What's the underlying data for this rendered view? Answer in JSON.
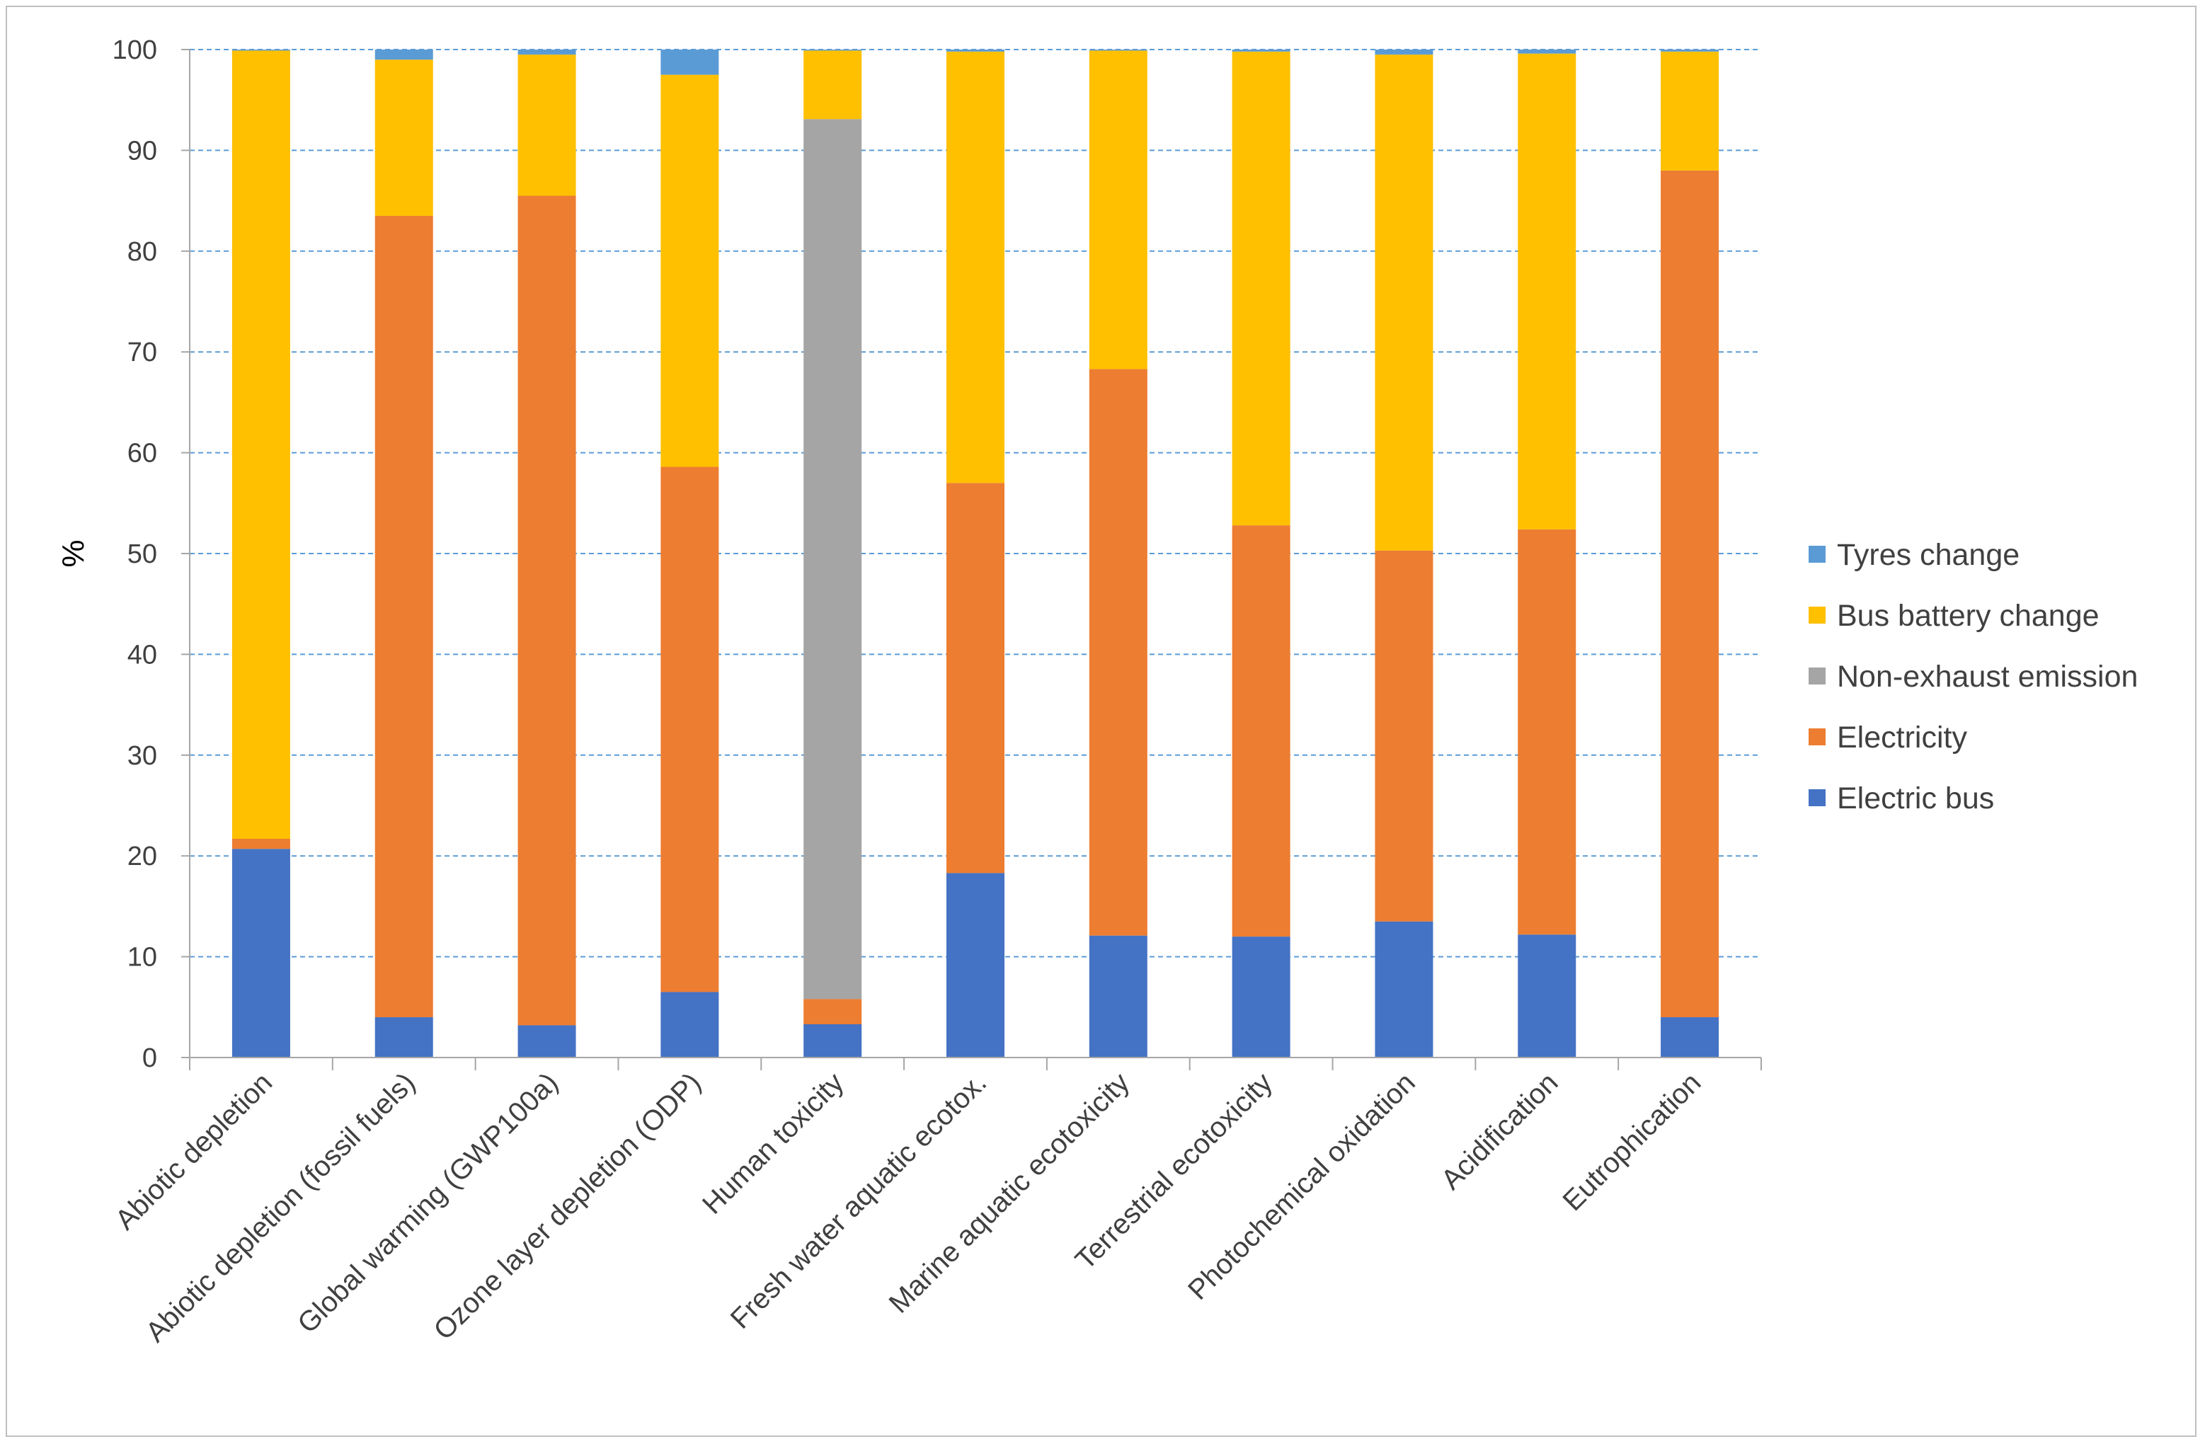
{
  "chart_data": {
    "type": "bar",
    "stacked": true,
    "title": "",
    "xlabel": "",
    "ylabel": "%",
    "ylim": [
      0,
      100
    ],
    "yticks": [
      0,
      10,
      20,
      30,
      40,
      50,
      60,
      70,
      80,
      90,
      100
    ],
    "grid": true,
    "legend_position": "right",
    "categories": [
      "Abiotic depletion",
      "Abiotic depletion (fossil fuels)",
      "Global warming (GWP100a)",
      "Ozone layer depletion (ODP)",
      "Human toxicity",
      "Fresh water aquatic ecotox.",
      "Marine aquatic ecotoxicity",
      "Terrestrial ecotoxicity",
      "Photochemical oxidation",
      "Acidification",
      "Eutrophication"
    ],
    "series": [
      {
        "name": "Electric bus",
        "color": "#4472C4",
        "values": [
          20.7,
          4.0,
          3.2,
          6.5,
          3.3,
          18.3,
          12.1,
          12.0,
          13.5,
          12.2,
          4.0
        ]
      },
      {
        "name": "Electricity",
        "color": "#ED7D31",
        "values": [
          1.0,
          79.5,
          82.3,
          52.1,
          2.5,
          38.7,
          56.2,
          40.8,
          36.8,
          40.2,
          84.0
        ]
      },
      {
        "name": "Non-exhaust emission",
        "color": "#A5A5A5",
        "values": [
          0.0,
          0.0,
          0.0,
          0.0,
          87.3,
          0.0,
          0.0,
          0.0,
          0.0,
          0.0,
          0.0
        ]
      },
      {
        "name": "Bus battery change",
        "color": "#FFC000",
        "values": [
          78.2,
          15.5,
          14.0,
          38.9,
          6.8,
          42.8,
          31.6,
          47.0,
          49.2,
          47.2,
          11.8
        ]
      },
      {
        "name": "Tyres change",
        "color": "#5B9BD5",
        "values": [
          0.1,
          1.0,
          0.5,
          2.5,
          0.1,
          0.2,
          0.1,
          0.2,
          0.5,
          0.4,
          0.2
        ]
      }
    ],
    "legend_order": [
      "Tyres change",
      "Bus battery change",
      "Non-exhaust emission",
      "Electricity",
      "Electric bus"
    ],
    "gridline_color": "#5B9BD5",
    "axis_color": "#A6A6A6"
  }
}
